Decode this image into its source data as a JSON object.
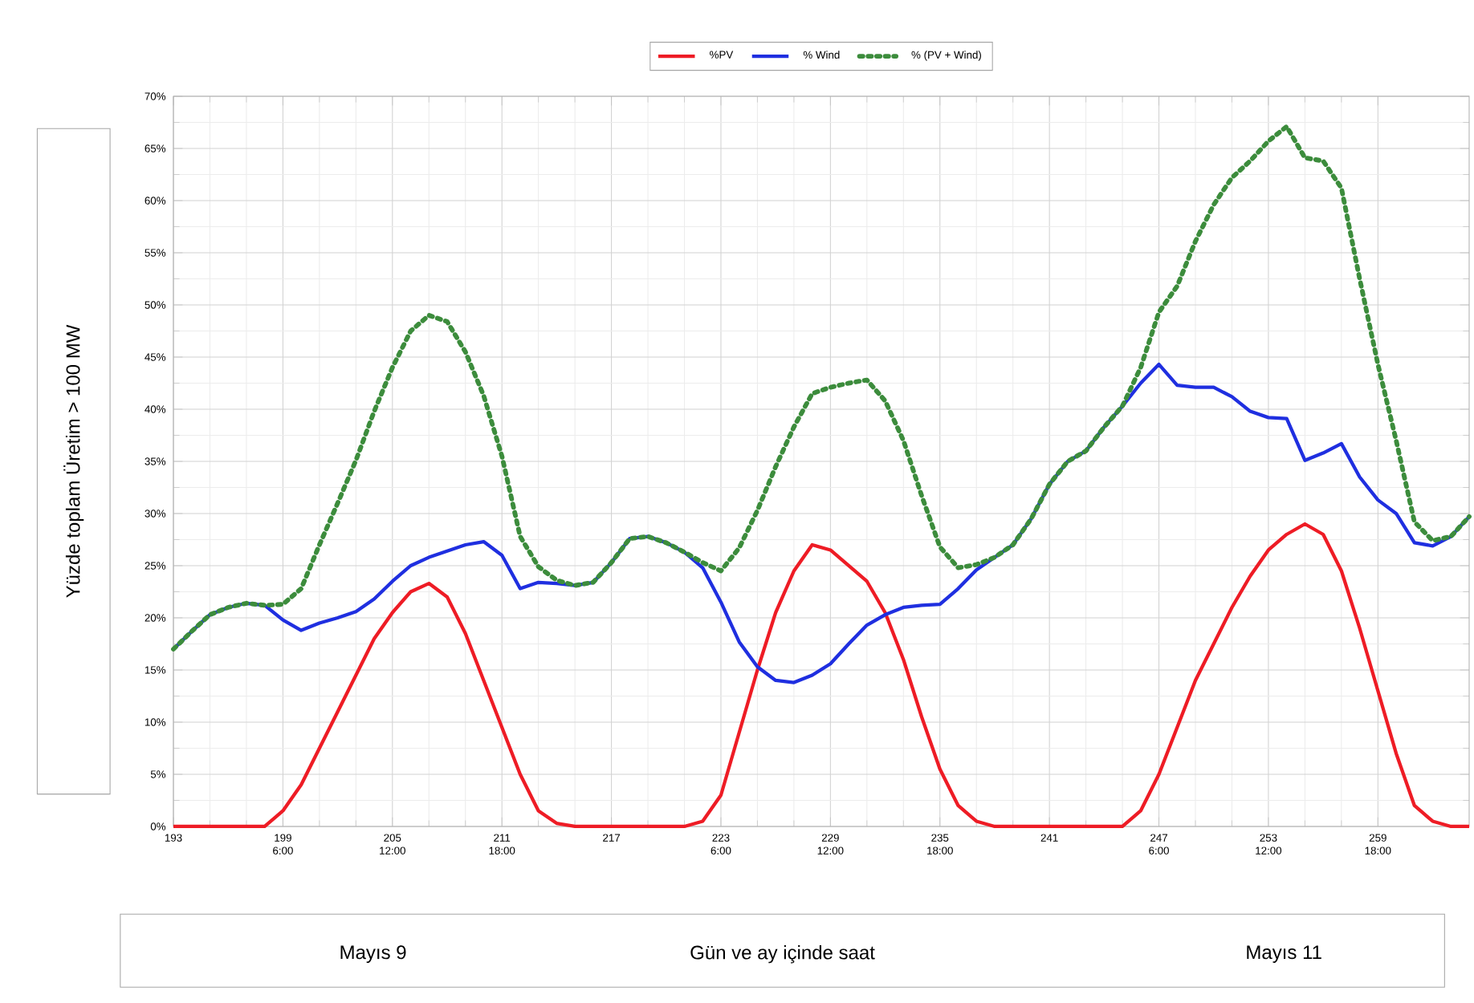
{
  "chart_data": {
    "type": "line",
    "ylabel": "Yüzde toplam Üretim > 100 MW",
    "annotations": [
      "Mayıs 9",
      "Gün ve ay içinde saat",
      "Mayıs 11"
    ],
    "xlim": [
      193,
      264
    ],
    "ylim": [
      0,
      70
    ],
    "xticks": [
      193,
      {
        "value": 199,
        "label": "199 6:00"
      },
      {
        "value": 205,
        "label": "205 12:00"
      },
      {
        "value": 211,
        "label": "211 18:00"
      },
      217,
      {
        "value": 223,
        "label": "223 6:00"
      },
      {
        "value": 229,
        "label": "229 12:00"
      },
      {
        "value": 235,
        "label": "235 18:00"
      },
      241,
      {
        "value": 247,
        "label": "247 6:00"
      },
      {
        "value": 253,
        "label": "253 12:00"
      },
      {
        "value": 259,
        "label": "259 18:00"
      }
    ],
    "yticks": [
      {
        "value": 0,
        "label": "0%"
      },
      {
        "value": 5,
        "label": "5%"
      },
      {
        "value": 10,
        "label": "10%"
      },
      {
        "value": 15,
        "label": "15%"
      },
      {
        "value": 20,
        "label": "20%"
      },
      {
        "value": 25,
        "label": "25%"
      },
      {
        "value": 30,
        "label": "30%"
      },
      {
        "value": 35,
        "label": "35%"
      },
      {
        "value": 40,
        "label": "40%"
      },
      {
        "value": 45,
        "label": "45%"
      },
      {
        "value": 50,
        "label": "50%"
      },
      {
        "value": 55,
        "label": "55%"
      },
      {
        "value": 60,
        "label": "60%"
      },
      {
        "value": 65,
        "label": "65%"
      },
      {
        "value": 70,
        "label": "70%"
      }
    ],
    "grid": true,
    "legend": "top",
    "x": [
      193,
      194,
      195,
      196,
      197,
      198,
      199,
      200,
      201,
      202,
      203,
      204,
      205,
      206,
      207,
      208,
      209,
      210,
      211,
      212,
      213,
      214,
      215,
      216,
      217,
      218,
      219,
      220,
      221,
      222,
      223,
      224,
      225,
      226,
      227,
      228,
      229,
      230,
      231,
      232,
      233,
      234,
      235,
      236,
      237,
      238,
      239,
      240,
      241,
      242,
      243,
      244,
      245,
      246,
      247,
      248,
      249,
      250,
      251,
      252,
      253,
      254,
      255,
      256,
      257,
      258,
      259,
      260,
      261,
      262,
      263,
      264
    ],
    "series": [
      {
        "name": "%PV",
        "color": "#ee1c25",
        "line_style": "solid",
        "values": [
          0,
          0,
          0,
          0,
          0,
          0,
          1.5,
          4,
          7.5,
          11,
          14.5,
          18,
          20.5,
          22.5,
          23.3,
          22,
          18.5,
          14,
          9.5,
          5,
          1.5,
          0.3,
          0,
          0,
          0,
          0,
          0,
          0,
          0,
          0.5,
          3,
          9,
          15,
          20.5,
          24.5,
          27,
          26.5,
          25,
          23.5,
          20.5,
          16,
          10.5,
          5.5,
          2,
          0.5,
          0,
          0,
          0,
          0,
          0,
          0,
          0,
          0,
          1.5,
          5,
          9.5,
          14,
          17.5,
          21,
          24,
          26.5,
          28,
          29,
          28,
          24.5,
          19,
          13,
          7,
          2,
          0.5,
          0,
          0
        ]
      },
      {
        "name": "% Wind",
        "color": "#1f2fe0",
        "line_style": "solid",
        "values": [
          17,
          18.7,
          20.3,
          21,
          21.4,
          21.2,
          19.8,
          18.8,
          19.5,
          20,
          20.6,
          21.8,
          23.5,
          25,
          25.8,
          26.4,
          27,
          27.3,
          26,
          22.8,
          23.4,
          23.3,
          23.1,
          23.4,
          25.3,
          27.6,
          27.8,
          27.2,
          26.3,
          24.8,
          21.5,
          17.7,
          15.3,
          14,
          13.8,
          14.5,
          15.6,
          17.5,
          19.3,
          20.3,
          21,
          21.2,
          21.3,
          22.8,
          24.6,
          25.8,
          27,
          29.5,
          32.8,
          35,
          36,
          38.3,
          40.3,
          42.5,
          44.3,
          42.3,
          42.1,
          42.1,
          41.2,
          39.8,
          39.2,
          39.1,
          35.1,
          35.8,
          36.7,
          33.5,
          31.3,
          30,
          27.2,
          26.9,
          27.8,
          29.7
        ]
      },
      {
        "name": "% (PV + Wind)",
        "color": "#3c8c3c",
        "line_style": "dotted",
        "values": [
          17,
          18.7,
          20.3,
          21,
          21.4,
          21.2,
          21.3,
          22.8,
          27,
          31,
          35.1,
          39.8,
          44,
          47.5,
          49,
          48.4,
          45.5,
          41.3,
          35.5,
          27.8,
          24.9,
          23.6,
          23.1,
          23.4,
          25.3,
          27.6,
          27.8,
          27.2,
          26.3,
          25.3,
          24.5,
          26.7,
          30.3,
          34.5,
          38.3,
          41.5,
          42.1,
          42.5,
          42.8,
          40.8,
          37,
          31.7,
          26.8,
          24.8,
          25.1,
          25.8,
          27,
          29.5,
          32.8,
          35,
          36,
          38.3,
          40.3,
          44,
          49.3,
          51.8,
          56.1,
          59.6,
          62.2,
          63.8,
          65.7,
          67.1,
          64.1,
          63.8,
          61.2,
          52.5,
          44.3,
          37,
          29.2,
          27.4,
          27.8,
          29.7
        ]
      }
    ]
  }
}
